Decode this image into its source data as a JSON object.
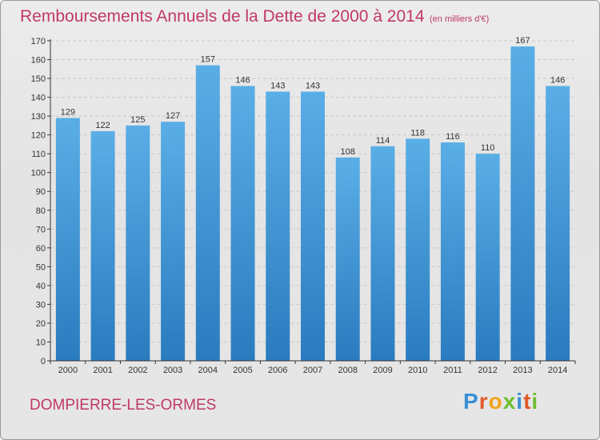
{
  "title": "Remboursements Annuels de la Dette de 2000 à 2014",
  "subtitle": "(en milliers d'€)",
  "commune": "DOMPIERRE-LES-ORMES",
  "brand": {
    "text": "Proxiti",
    "letters": [
      "P",
      "r",
      "o",
      "x",
      "i",
      "t",
      "i"
    ],
    "colors": [
      "#3a8fd6",
      "#e05a2b",
      "#f2a41c",
      "#6cbf2e",
      "#3a8fd6",
      "#e05a2b",
      "#6cbf2e"
    ]
  },
  "colors": {
    "title": "#c0386a",
    "bar_top": "#5aaee6",
    "bar_bottom": "#2a7bbf",
    "axis": "#333333"
  },
  "chart_data": {
    "type": "bar",
    "title": "Remboursements Annuels de la Dette de 2000 à 2014",
    "subtitle": "(en milliers d'€)",
    "categories": [
      "2000",
      "2001",
      "2002",
      "2003",
      "2004",
      "2005",
      "2006",
      "2007",
      "2008",
      "2009",
      "2010",
      "2011",
      "2012",
      "2013",
      "2014"
    ],
    "values": [
      129,
      122,
      125,
      127,
      157,
      146,
      143,
      143,
      108,
      114,
      118,
      116,
      110,
      167,
      146
    ],
    "ylim": [
      0,
      170
    ],
    "yticks": [
      0,
      10,
      20,
      30,
      40,
      50,
      60,
      70,
      80,
      90,
      100,
      110,
      120,
      130,
      140,
      150,
      160,
      170
    ],
    "grid": true,
    "data_labels": true
  }
}
